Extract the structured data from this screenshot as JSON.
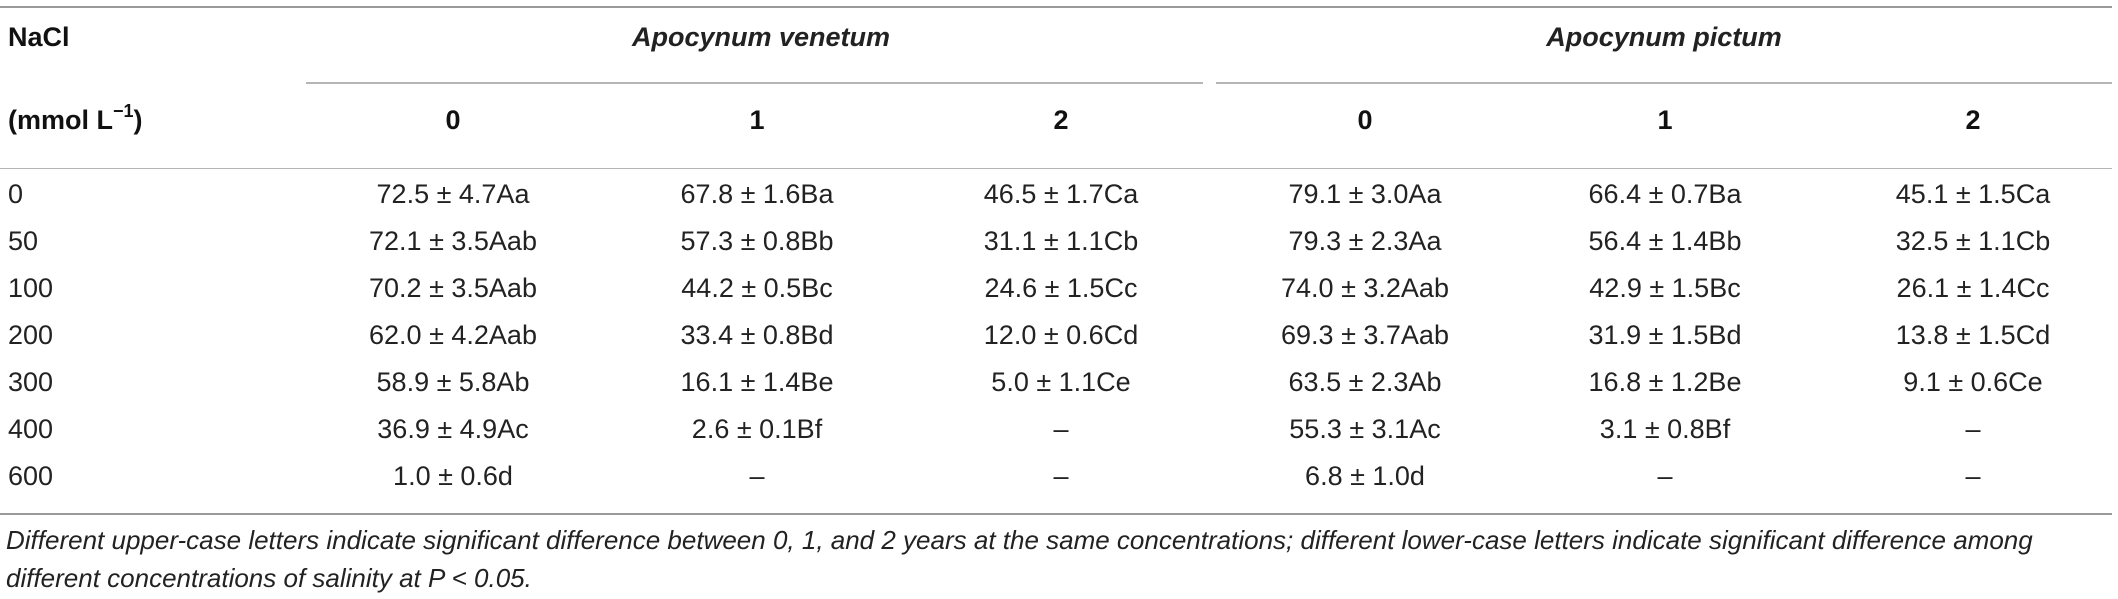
{
  "header": {
    "nacl_label": "NaCl",
    "unit_label_prefix": "(mmol L",
    "unit_label_sup": "−1",
    "unit_label_suffix": ")",
    "groups": [
      "Apocynum venetum",
      "Apocynum pictum"
    ],
    "years": [
      "0",
      "1",
      "2",
      "0",
      "1",
      "2"
    ]
  },
  "rows": [
    {
      "nacl": "0",
      "cells": [
        "72.5 ± 4.7Aa",
        "67.8 ± 1.6Ba",
        "46.5 ± 1.7Ca",
        "79.1 ± 3.0Aa",
        "66.4 ± 0.7Ba",
        "45.1 ± 1.5Ca"
      ]
    },
    {
      "nacl": "50",
      "cells": [
        "72.1 ± 3.5Aab",
        "57.3 ± 0.8Bb",
        "31.1 ± 1.1Cb",
        "79.3 ± 2.3Aa",
        "56.4 ± 1.4Bb",
        "32.5 ± 1.1Cb"
      ]
    },
    {
      "nacl": "100",
      "cells": [
        "70.2 ± 3.5Aab",
        "44.2 ± 0.5Bc",
        "24.6 ± 1.5Cc",
        "74.0 ± 3.2Aab",
        "42.9 ± 1.5Bc",
        "26.1 ± 1.4Cc"
      ]
    },
    {
      "nacl": "200",
      "cells": [
        "62.0 ± 4.2Aab",
        "33.4 ± 0.8Bd",
        "12.0 ± 0.6Cd",
        "69.3 ± 3.7Aab",
        "31.9 ± 1.5Bd",
        "13.8 ± 1.5Cd"
      ]
    },
    {
      "nacl": "300",
      "cells": [
        "58.9 ± 5.8Ab",
        "16.1 ± 1.4Be",
        "5.0 ± 1.1Ce",
        "63.5 ± 2.3Ab",
        "16.8 ± 1.2Be",
        "9.1 ± 0.6Ce"
      ]
    },
    {
      "nacl": "400",
      "cells": [
        "36.9 ± 4.9Ac",
        "2.6 ± 0.1Bf",
        "–",
        "55.3 ± 3.1Ac",
        "3.1 ± 0.8Bf",
        "–"
      ]
    },
    {
      "nacl": "600",
      "cells": [
        "1.0 ± 0.6d",
        "–",
        "–",
        "6.8 ± 1.0d",
        "–",
        "–"
      ]
    }
  ],
  "footnote": "Different upper-case letters indicate significant difference between 0, 1, and 2 years at the same concentrations; different lower-case letters indicate significant difference among different concentrations of salinity at P < 0.05."
}
